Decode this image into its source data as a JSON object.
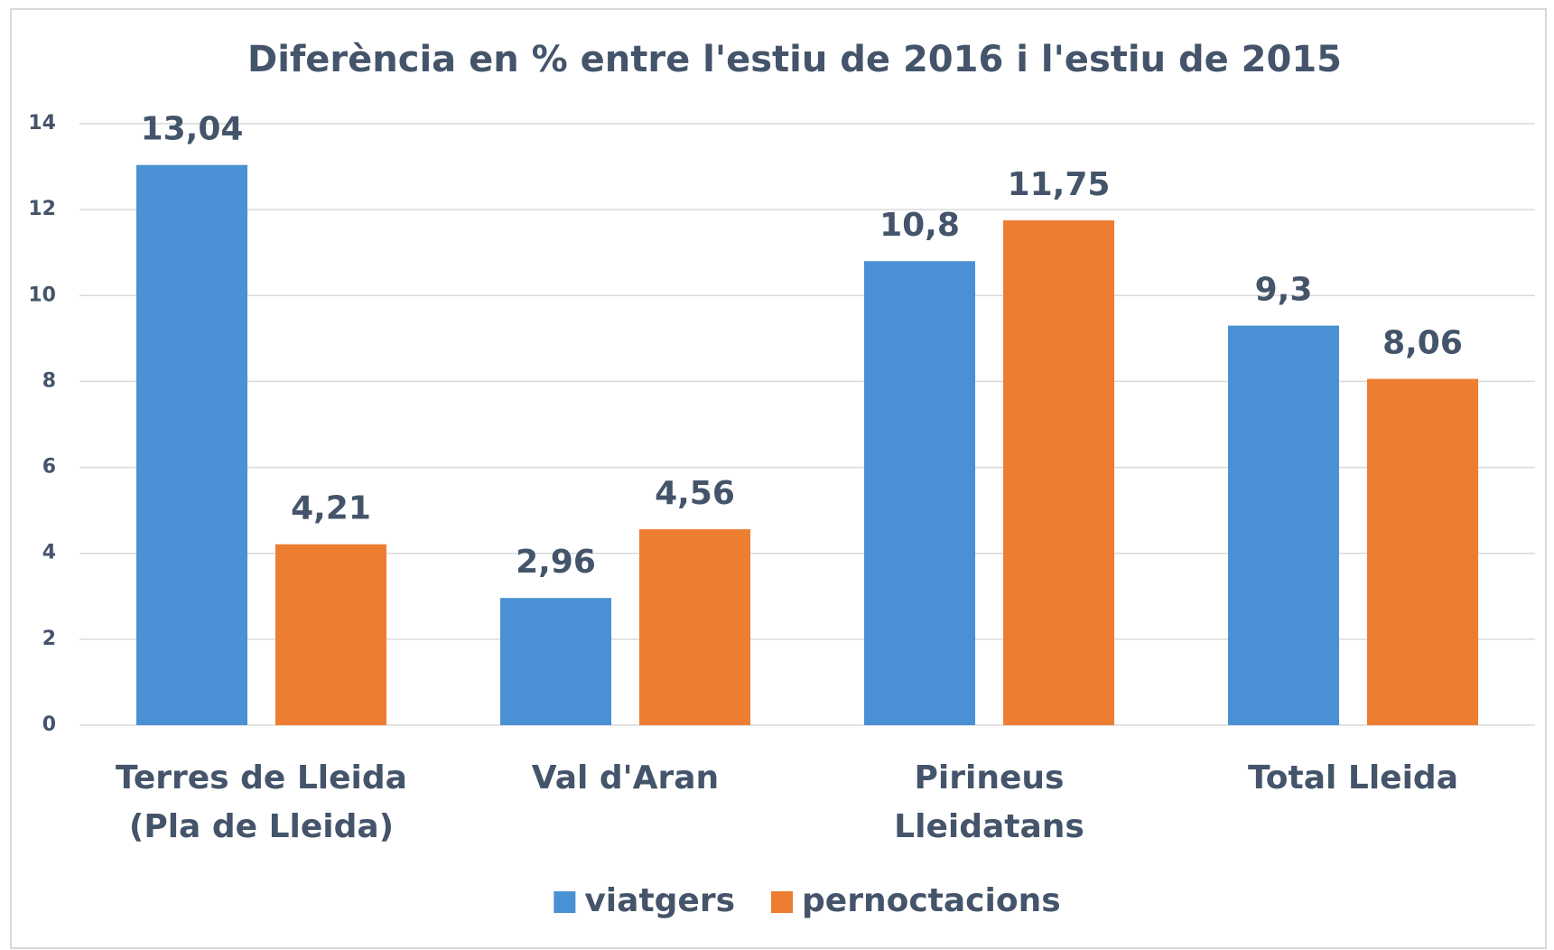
{
  "chart_data": {
    "type": "bar",
    "title": "Diferència en % entre l'estiu de 2016 i l'estiu de 2015",
    "categories": [
      "Terres de Lleida (Pla de Lleida)",
      "Val d'Aran",
      "Pirineus Lleidatans",
      "Total Lleida"
    ],
    "series": [
      {
        "name": "viatgers",
        "color": "#4a90d4",
        "values": [
          13.04,
          2.96,
          10.8,
          9.3
        ],
        "value_labels": [
          "13,04",
          "2,96",
          "10,8",
          "9,3"
        ]
      },
      {
        "name": "pernoctacions",
        "color": "#ed7d31",
        "values": [
          4.21,
          4.56,
          11.75,
          8.06
        ],
        "value_labels": [
          "4,21",
          "4,56",
          "11,75",
          "8,06"
        ]
      }
    ],
    "ylim": [
      0,
      14
    ],
    "yticks": [
      0,
      2,
      4,
      6,
      8,
      10,
      12,
      14
    ],
    "grid": true,
    "legend": "bottom"
  }
}
